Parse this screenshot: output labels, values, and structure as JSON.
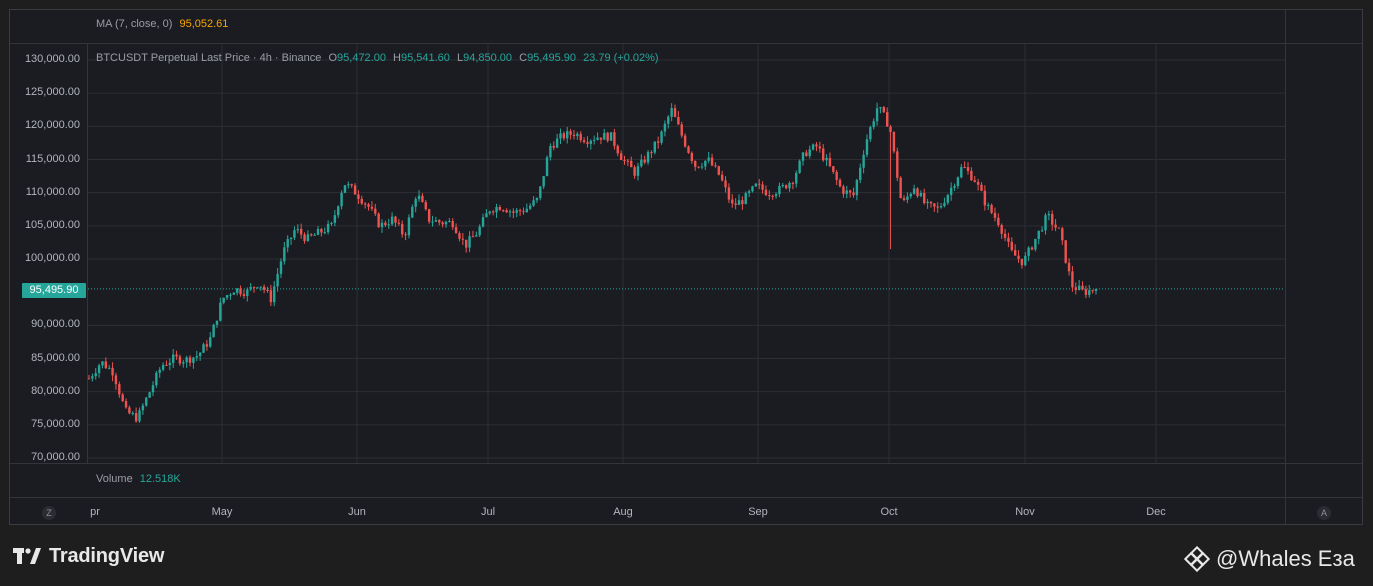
{
  "indicator": {
    "name": "MA (7, close, 0)",
    "value": "95,052.61"
  },
  "symbol_line": {
    "desc": "BTCUSDT Perpetual Last Price · 4h · Binance",
    "open_label": "O",
    "open": "95,472.00",
    "high_label": "H",
    "high": "95,541.60",
    "low_label": "L",
    "low": "94,850.00",
    "close_label": "C",
    "close": "95,495.90",
    "change": "23.79 (+0.02%)"
  },
  "volume": {
    "label": "Volume",
    "value": "12.518K"
  },
  "price_axis": [
    "130,000.00",
    "125,000.00",
    "120,000.00",
    "115,000.00",
    "110,000.00",
    "105,000.00",
    "100,000.00",
    "90,000.00",
    "85,000.00",
    "80,000.00",
    "75,000.00",
    "70,000.00"
  ],
  "current_price_label": "95,495.90",
  "time_axis": [
    "pr",
    "May",
    "Jun",
    "Jul",
    "Aug",
    "Sep",
    "Oct",
    "Nov",
    "Dec"
  ],
  "axis_buttons": {
    "left": "Z",
    "right": "A"
  },
  "footer": {
    "brand": "TradingView",
    "watermark": "@Whales Eзa"
  },
  "colors": {
    "up": "#26a69a",
    "down": "#ef5350",
    "background": "#1b1c21",
    "grid": "#33353b"
  },
  "chart_data": {
    "type": "candlestick",
    "ylim": [
      70000,
      130000
    ],
    "x_start": "Apr",
    "x_end": "Dec",
    "last_price": 95495.9,
    "closes": [
      82000,
      84500,
      83000,
      77000,
      76000,
      80000,
      84000,
      85000,
      84800,
      85500,
      88000,
      94000,
      95500,
      95000,
      96500,
      94000,
      101000,
      104500,
      103000,
      104000,
      105000,
      111500,
      110000,
      108000,
      105000,
      106000,
      103500,
      110000,
      106000,
      105500,
      105500,
      102000,
      104000,
      107500,
      108000,
      107000,
      107500,
      109000,
      117000,
      118500,
      119000,
      118000,
      118500,
      118500,
      115000,
      113000,
      115500,
      118000,
      122500,
      118000,
      114000,
      115000,
      112500,
      108000,
      109000,
      111000,
      110000,
      110500,
      112000,
      116000,
      117000,
      114000,
      110500,
      109500,
      117500,
      123000,
      120000,
      108000,
      111000,
      108000,
      107500,
      110500,
      114000,
      112000,
      108000,
      105500,
      101000,
      99500,
      103000,
      106500,
      104000,
      96000,
      95000,
      95495.9
    ]
  }
}
